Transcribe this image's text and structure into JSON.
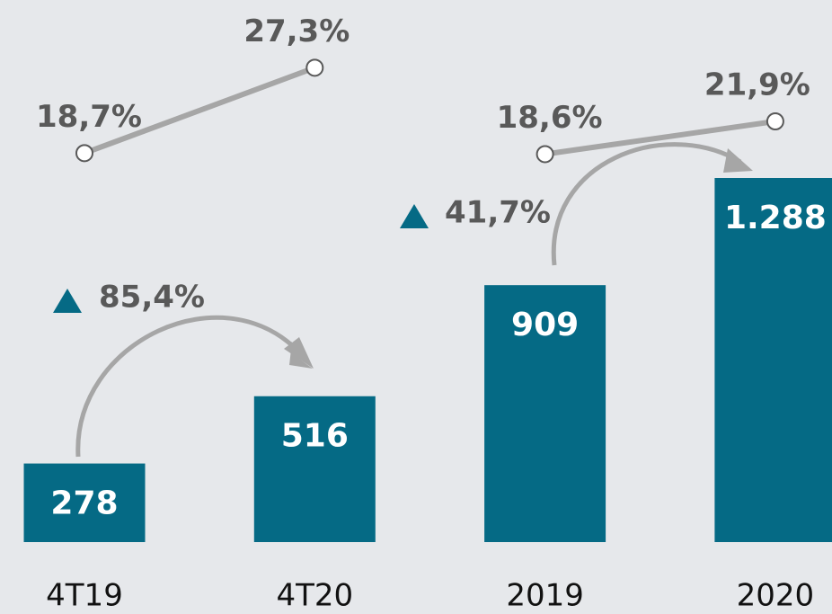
{
  "chart_data": {
    "type": "bar",
    "categories": [
      "4T19",
      "4T20",
      "2019",
      "2020"
    ],
    "values": [
      278,
      516,
      909,
      1288
    ],
    "value_labels": [
      "278",
      "516",
      "909",
      "1.288"
    ],
    "color": "#056a85",
    "line": {
      "values": [
        18.7,
        27.3,
        18.6,
        21.9
      ],
      "value_labels": [
        "18,7%",
        "27,3%",
        "18,6%",
        "21,9%"
      ],
      "color": "#a6a6a6"
    },
    "annotations": [
      "85,4%",
      "41,7%"
    ],
    "annotation_color": "#056a85"
  }
}
